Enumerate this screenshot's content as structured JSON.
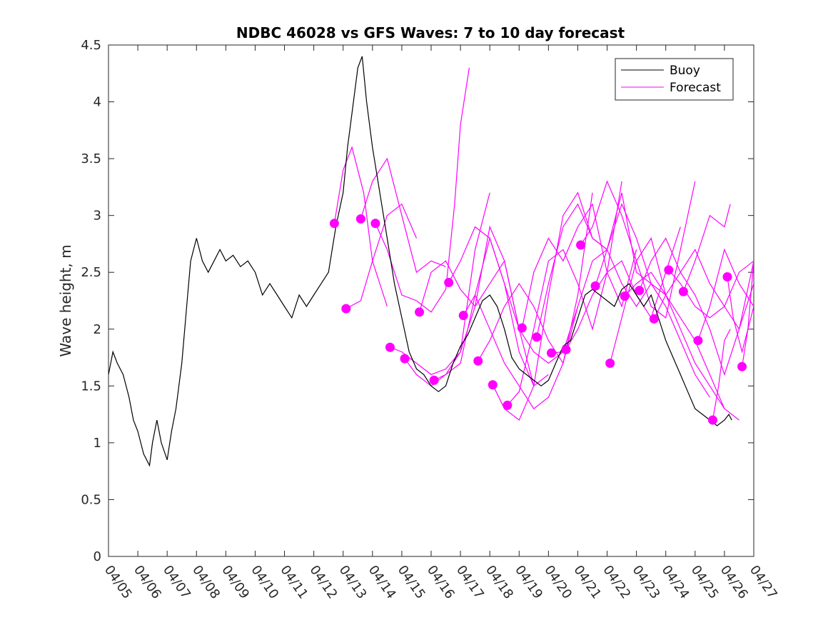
{
  "chart_data": {
    "type": "line",
    "title": "NDBC 46028 vs GFS Waves: 7 to 10 day forecast",
    "xlabel": "",
    "ylabel": "Wave height, m",
    "x_range_days": [
      0,
      22
    ],
    "ylim": [
      0,
      4.5
    ],
    "x_tick_labels": [
      "04/05",
      "04/06",
      "04/07",
      "04/08",
      "04/09",
      "04/10",
      "04/11",
      "04/12",
      "04/13",
      "04/14",
      "04/15",
      "04/16",
      "04/17",
      "04/18",
      "04/19",
      "04/20",
      "04/21",
      "04/22",
      "04/23",
      "04/24",
      "04/25",
      "04/26",
      "04/27"
    ],
    "y_ticks": [
      0,
      0.5,
      1,
      1.5,
      2,
      2.5,
      3,
      3.5,
      4,
      4.5
    ],
    "y_tick_labels": [
      "0",
      "0.5",
      "1",
      "1.5",
      "2",
      "2.5",
      "3",
      "3.5",
      "4",
      "4.5"
    ],
    "grid": false,
    "legend_position": "top-right",
    "colors": {
      "buoy": "#000000",
      "forecast": "#ff00ff"
    },
    "series": [
      {
        "name": "Buoy",
        "x": [
          0,
          0.15,
          0.3,
          0.5,
          0.7,
          0.85,
          1.0,
          1.2,
          1.4,
          1.5,
          1.65,
          1.8,
          2.0,
          2.15,
          2.3,
          2.5,
          2.7,
          2.8,
          3.0,
          3.2,
          3.4,
          3.6,
          3.8,
          4.0,
          4.25,
          4.5,
          4.75,
          5.0,
          5.25,
          5.5,
          5.75,
          6.0,
          6.25,
          6.5,
          6.75,
          7.0,
          7.25,
          7.5,
          7.75,
          8.0,
          8.15,
          8.3,
          8.5,
          8.65,
          8.8,
          9.0,
          9.25,
          9.5,
          9.75,
          10.0,
          10.25,
          10.5,
          10.75,
          11.0,
          11.25,
          11.5,
          11.75,
          12.0,
          12.25,
          12.5,
          12.75,
          13.0,
          13.25,
          13.5,
          13.75,
          14.0,
          14.25,
          14.5,
          14.75,
          15.0,
          15.25,
          15.5,
          15.75,
          16.0,
          16.25,
          16.5,
          16.75,
          17.0,
          17.25,
          17.5,
          17.75,
          18.0,
          18.25,
          18.5,
          18.75,
          19.0,
          19.25,
          19.5,
          19.75,
          20.0,
          20.25,
          20.5,
          20.75,
          21.0,
          21.15,
          21.25
        ],
        "values": [
          1.6,
          1.8,
          1.7,
          1.6,
          1.4,
          1.2,
          1.1,
          0.9,
          0.8,
          1.0,
          1.2,
          1.0,
          0.85,
          1.1,
          1.3,
          1.7,
          2.3,
          2.6,
          2.8,
          2.6,
          2.5,
          2.6,
          2.7,
          2.6,
          2.65,
          2.55,
          2.6,
          2.5,
          2.3,
          2.4,
          2.3,
          2.2,
          2.1,
          2.3,
          2.2,
          2.3,
          2.4,
          2.5,
          2.9,
          3.2,
          3.6,
          3.9,
          4.3,
          4.4,
          4.0,
          3.6,
          3.2,
          2.8,
          2.4,
          2.1,
          1.8,
          1.65,
          1.6,
          1.5,
          1.45,
          1.5,
          1.7,
          1.85,
          1.95,
          2.1,
          2.25,
          2.3,
          2.2,
          2.0,
          1.75,
          1.65,
          1.6,
          1.55,
          1.5,
          1.55,
          1.7,
          1.85,
          1.9,
          2.1,
          2.3,
          2.35,
          2.3,
          2.25,
          2.2,
          2.35,
          2.4,
          2.3,
          2.2,
          2.3,
          2.1,
          1.9,
          1.75,
          1.6,
          1.45,
          1.3,
          1.25,
          1.2,
          1.15,
          1.2,
          1.25,
          1.2
        ]
      },
      {
        "name": "Forecast",
        "runs": [
          {
            "x": [
              7.7,
              8.0,
              8.3,
              8.7,
              9.0,
              9.5
            ],
            "values": [
              2.93,
              3.4,
              3.6,
              3.2,
              2.6,
              2.2
            ]
          },
          {
            "x": [
              8.1,
              8.6,
              9.0,
              9.5,
              10.0,
              10.5
            ],
            "values": [
              2.18,
              2.25,
              2.6,
              3.0,
              3.1,
              2.8
            ]
          },
          {
            "x": [
              8.6,
              9.0,
              9.5,
              10.0,
              10.5,
              11.0,
              11.5
            ],
            "values": [
              2.97,
              3.3,
              3.5,
              3.0,
              2.5,
              2.6,
              2.55
            ]
          },
          {
            "x": [
              9.1,
              9.5,
              10.0,
              10.5,
              11.0,
              11.5,
              11.8,
              12.0,
              12.3
            ],
            "values": [
              2.93,
              2.7,
              2.3,
              2.25,
              2.15,
              2.35,
              3.1,
              3.8,
              4.3
            ]
          },
          {
            "x": [
              9.6,
              10.0,
              10.5,
              11.0,
              11.5,
              12.0,
              12.5,
              13.0
            ],
            "values": [
              1.84,
              1.8,
              1.7,
              1.6,
              1.65,
              1.8,
              2.7,
              3.2
            ]
          },
          {
            "x": [
              10.1,
              10.5,
              11.0,
              11.5,
              12.0,
              12.5,
              13.0,
              13.5,
              14.0
            ],
            "values": [
              1.74,
              1.6,
              1.5,
              1.6,
              1.8,
              2.2,
              2.9,
              2.6,
              2.0
            ]
          },
          {
            "x": [
              10.6,
              11.0,
              11.5,
              12.0,
              12.5,
              13.0,
              13.5,
              14.0,
              14.5
            ],
            "values": [
              2.15,
              2.5,
              2.6,
              2.35,
              2.2,
              2.4,
              2.6,
              2.0,
              1.5
            ]
          },
          {
            "x": [
              11.1,
              11.5,
              12.0,
              12.5,
              13.0,
              13.5,
              14.0,
              14.5,
              15.0
            ],
            "values": [
              1.55,
              1.6,
              1.7,
              2.3,
              2.8,
              2.4,
              1.8,
              1.5,
              1.6
            ]
          },
          {
            "x": [
              11.6,
              12.0,
              12.5,
              13.0,
              13.5,
              14.0,
              14.5,
              15.0,
              15.5
            ],
            "values": [
              2.41,
              2.6,
              2.9,
              2.8,
              2.4,
              2.0,
              1.8,
              1.7,
              1.8
            ]
          },
          {
            "x": [
              12.1,
              12.5,
              13.0,
              13.5,
              14.0,
              14.5,
              15.0,
              15.5,
              16.0
            ],
            "values": [
              2.12,
              2.3,
              2.0,
              1.7,
              1.5,
              1.3,
              1.4,
              1.7,
              2.2
            ]
          },
          {
            "x": [
              12.6,
              13.0,
              13.5,
              14.0,
              14.5,
              15.0,
              15.5,
              16.0,
              16.5
            ],
            "values": [
              1.72,
              1.9,
              2.2,
              2.4,
              2.2,
              1.9,
              1.7,
              2.3,
              3.2
            ]
          },
          {
            "x": [
              13.1,
              13.5,
              14.0,
              14.5,
              15.0,
              15.5,
              16.0,
              16.5,
              17.0
            ],
            "values": [
              1.51,
              1.3,
              1.2,
              1.5,
              2.3,
              3.0,
              3.2,
              2.8,
              2.7
            ]
          },
          {
            "x": [
              13.6,
              14.0,
              14.5,
              15.0,
              15.5,
              16.0,
              16.5,
              17.0,
              17.5
            ],
            "values": [
              1.33,
              1.45,
              2.0,
              2.6,
              2.7,
              2.4,
              2.0,
              2.5,
              3.3
            ]
          },
          {
            "x": [
              14.1,
              14.5,
              15.0,
              15.5,
              16.0,
              16.5,
              17.0,
              17.5,
              18.0
            ],
            "values": [
              2.01,
              2.5,
              2.8,
              2.6,
              2.9,
              3.1,
              2.5,
              2.2,
              2.7
            ]
          },
          {
            "x": [
              14.6,
              15.0,
              15.5,
              16.0,
              16.5,
              17.0,
              17.5,
              18.0,
              18.5
            ],
            "values": [
              1.93,
              2.4,
              2.9,
              3.1,
              2.8,
              2.7,
              3.2,
              2.5,
              2.4
            ]
          },
          {
            "x": [
              15.1,
              15.5,
              16.0,
              16.5,
              17.0,
              17.5,
              18.0,
              18.5,
              19.0
            ],
            "values": [
              1.79,
              1.8,
              2.2,
              2.6,
              2.7,
              2.4,
              2.2,
              2.4,
              2.3
            ]
          },
          {
            "x": [
              15.6,
              16.0,
              16.5,
              17.0,
              17.5,
              18.0,
              18.5,
              19.0,
              19.5
            ],
            "values": [
              1.82,
              2.0,
              2.3,
              2.5,
              2.6,
              2.3,
              2.1,
              2.5,
              2.9
            ]
          },
          {
            "x": [
              16.1,
              16.5,
              17.0,
              17.5,
              18.0,
              18.5,
              19.0,
              19.5,
              20.0
            ],
            "values": [
              2.74,
              2.9,
              3.3,
              3.0,
              2.6,
              2.2,
              2.1,
              2.7,
              3.3
            ]
          },
          {
            "x": [
              16.6,
              17.0,
              17.5,
              18.0,
              18.5,
              19.0,
              19.5,
              20.0,
              20.5
            ],
            "values": [
              2.38,
              2.7,
              3.1,
              2.8,
              2.4,
              2.2,
              1.9,
              1.6,
              1.4
            ]
          },
          {
            "x": [
              17.1,
              17.5,
              18.0,
              18.5,
              19.0,
              19.5,
              20.0,
              20.5,
              21.0
            ],
            "values": [
              1.7,
              2.1,
              2.6,
              2.8,
              2.3,
              2.0,
              1.7,
              1.5,
              1.3
            ]
          },
          {
            "x": [
              17.6,
              18.0,
              18.5,
              19.0,
              19.5,
              20.0,
              20.5,
              21.0,
              21.5
            ],
            "values": [
              2.29,
              2.4,
              2.5,
              2.3,
              2.1,
              1.9,
              1.6,
              1.3,
              1.2
            ]
          },
          {
            "x": [
              18.1,
              18.5,
              19.0,
              19.5,
              20.0,
              20.5,
              21.0,
              21.5,
              22.0
            ],
            "values": [
              2.34,
              2.6,
              2.8,
              2.5,
              2.3,
              2.0,
              1.6,
              2.0,
              2.4
            ]
          },
          {
            "x": [
              18.6,
              19.0,
              19.5,
              20.0,
              20.5,
              21.0,
              21.5,
              22.0
            ],
            "values": [
              2.09,
              2.3,
              2.5,
              2.7,
              2.4,
              2.2,
              2.0,
              2.6
            ]
          },
          {
            "x": [
              19.1,
              19.5,
              20.0,
              20.5,
              21.0,
              21.5,
              22.0
            ],
            "values": [
              2.52,
              2.4,
              2.2,
              2.1,
              2.2,
              2.5,
              2.6
            ]
          },
          {
            "x": [
              19.6,
              20.0,
              20.5,
              21.0,
              21.2
            ],
            "values": [
              2.33,
              2.6,
              3.0,
              2.9,
              3.1
            ]
          },
          {
            "x": [
              20.1,
              20.5,
              21.0,
              21.5,
              22.0
            ],
            "values": [
              1.9,
              2.2,
              2.7,
              2.4,
              2.2
            ]
          },
          {
            "x": [
              20.6,
              20.8,
              21.0,
              21.2
            ],
            "values": [
              1.2,
              1.5,
              1.9,
              2.0
            ]
          },
          {
            "x": [
              21.1,
              21.3,
              21.6,
              22.0
            ],
            "values": [
              2.46,
              2.1,
              1.8,
              2.2
            ]
          },
          {
            "x": [
              21.6,
              21.8,
              22.0
            ],
            "values": [
              1.67,
              2.0,
              2.6
            ]
          }
        ]
      }
    ]
  }
}
